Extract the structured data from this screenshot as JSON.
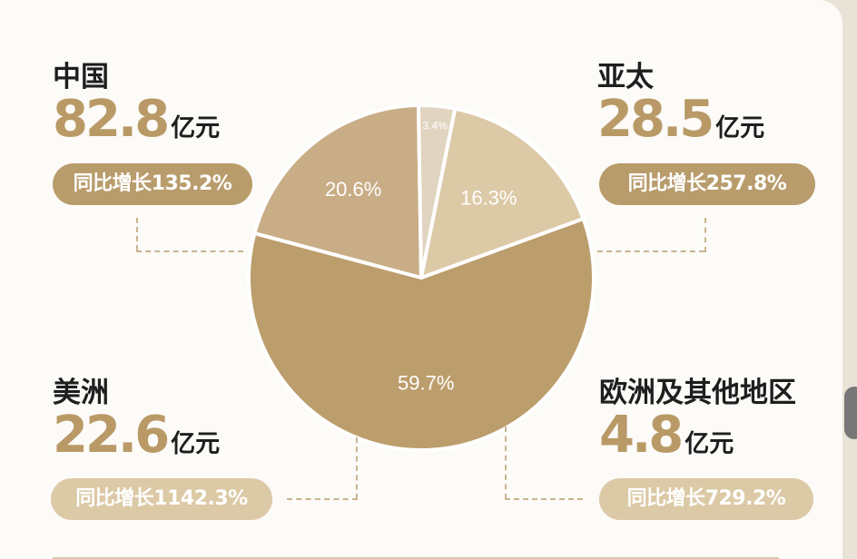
{
  "chart_data": {
    "type": "pie",
    "slices": [
      {
        "label": "中国",
        "percent": 59.7,
        "percent_label": "59.7%",
        "amount": "82.8",
        "unit": "亿元",
        "growth": "同比增长135.2%",
        "color": "#bc9d6c"
      },
      {
        "label": "亚太",
        "percent": 20.6,
        "percent_label": "20.6%",
        "amount": "28.5",
        "unit": "亿元",
        "growth": "同比增长257.8%",
        "color": "#c9ad86"
      },
      {
        "label": "欧洲及其他地区",
        "percent": 3.4,
        "percent_label": "3.4%",
        "amount": "4.8",
        "unit": "亿元",
        "growth": "同比增长729.2%",
        "color": "#e1d4c0"
      },
      {
        "label": "美洲",
        "percent": 16.3,
        "percent_label": "16.3%",
        "amount": "22.6",
        "unit": "亿元",
        "growth": "同比增长1142.3%",
        "color": "#dcc9a6"
      }
    ],
    "start_angle_deg": -20,
    "direction": "clockwise"
  },
  "colors": {
    "accent": "#b99a67",
    "pill_dark": "#b99c6c",
    "pill_light": "#dcc9a6",
    "connector": "#c9b48f"
  }
}
